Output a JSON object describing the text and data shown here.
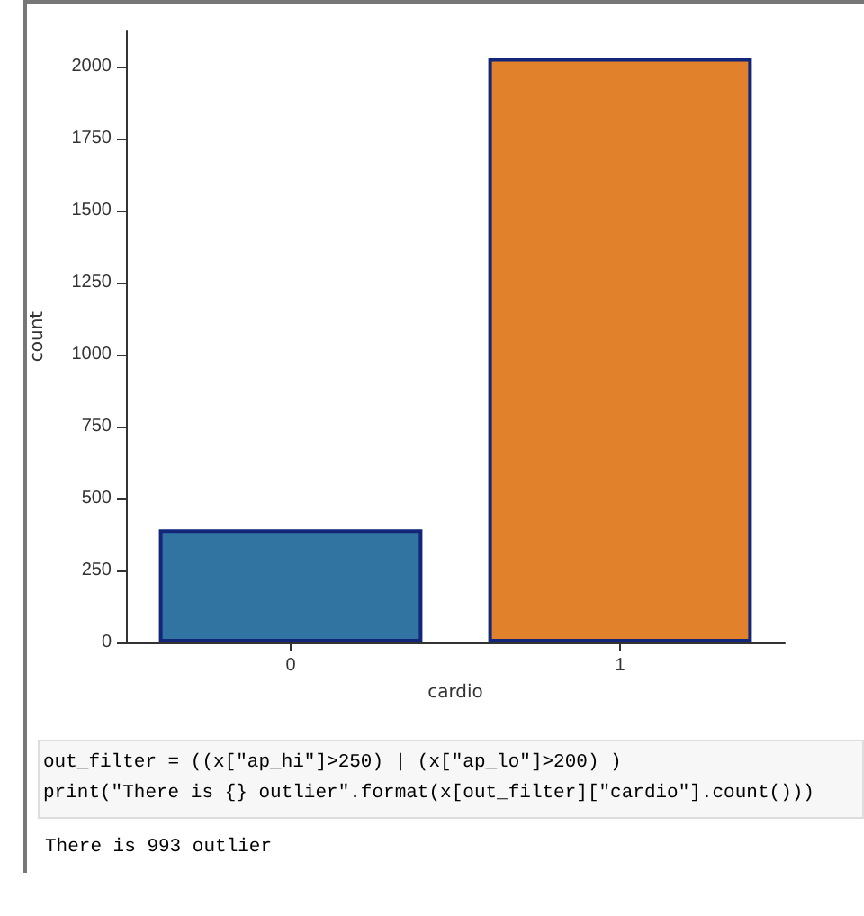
{
  "chart_data": {
    "type": "bar",
    "xlabel": "cardio",
    "ylabel": "count",
    "categories": [
      "0",
      "1"
    ],
    "values": [
      393,
      2030
    ],
    "colors": [
      "#3274a1",
      "#e1812c"
    ],
    "ylim": [
      0,
      2125
    ],
    "yticks": [
      0,
      250,
      500,
      750,
      1000,
      1250,
      1500,
      1750,
      2000
    ],
    "grid": false,
    "annotations": [
      "out_filter = ((x[\"ap_hi\"]>250) | (x[\"ap_lo\"]>200) )",
      "print(\"There is {} outlier\".format(x[out_filter][\"cardio\"].count()))",
      "There is 993 outlier"
    ]
  }
}
